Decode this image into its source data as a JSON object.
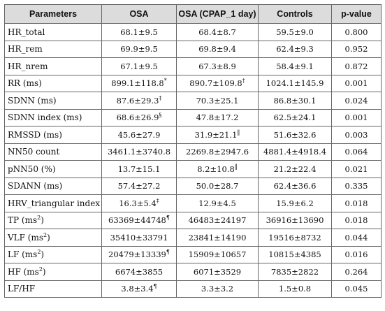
{
  "table": {
    "headers": [
      "Parameters",
      "OSA",
      "OSA (CPAP_1 day)",
      "Controls",
      "p-value"
    ],
    "rows": [
      {
        "param": "HR_total",
        "param_sup": "",
        "param_tail": "",
        "osa": "68.1±9.5",
        "osa_mark": "",
        "cpap": "68.4±8.7",
        "cpap_mark": "",
        "controls": "59.5±9.0",
        "p": "0.800"
      },
      {
        "param": "HR_rem",
        "param_sup": "",
        "param_tail": "",
        "osa": "69.9±9.5",
        "osa_mark": "",
        "cpap": "69.8±9.4",
        "cpap_mark": "",
        "controls": "62.4±9.3",
        "p": "0.952"
      },
      {
        "param": "HR_nrem",
        "param_sup": "",
        "param_tail": "",
        "osa": "67.1±9.5",
        "osa_mark": "",
        "cpap": "67.3±8.9",
        "cpap_mark": "",
        "controls": "58.4±9.1",
        "p": "0.872"
      },
      {
        "param": "RR (ms)",
        "param_sup": "",
        "param_tail": "",
        "osa": "899.1±118.8",
        "osa_mark": "*",
        "cpap": "890.7±109.8",
        "cpap_mark": "†",
        "controls": "1024.1±145.9",
        "p": "0.001"
      },
      {
        "param": "SDNN (ms)",
        "param_sup": "",
        "param_tail": "",
        "osa": "87.6±29.3",
        "osa_mark": "‡",
        "cpap": "70.3±25.1",
        "cpap_mark": "",
        "controls": "86.8±30.1",
        "p": "0.024"
      },
      {
        "param": "SDNN index (ms)",
        "param_sup": "",
        "param_tail": "",
        "osa": "68.6±26.9",
        "osa_mark": "§",
        "cpap": "47.8±17.2",
        "cpap_mark": "",
        "controls": "62.5±24.1",
        "p": "0.001"
      },
      {
        "param": "RMSSD (ms)",
        "param_sup": "",
        "param_tail": "",
        "osa": "45.6±27.9",
        "osa_mark": "",
        "cpap": "31.9±21.1",
        "cpap_mark": "‖",
        "controls": "51.6±32.6",
        "p": "0.003"
      },
      {
        "param": "NN50 count",
        "param_sup": "",
        "param_tail": "",
        "osa": "3461.1±3740.8",
        "osa_mark": "",
        "cpap": "2269.8±2947.6",
        "cpap_mark": "",
        "controls": "4881.4±4918.4",
        "p": "0.064"
      },
      {
        "param": "pNN50 (%)",
        "param_sup": "",
        "param_tail": "",
        "osa": "13.7±15.1",
        "osa_mark": "",
        "cpap": "8.2±10.8",
        "cpap_mark": "‖",
        "controls": "21.2±22.4",
        "p": "0.021"
      },
      {
        "param": "SDANN (ms)",
        "param_sup": "",
        "param_tail": "",
        "osa": "57.4±27.2",
        "osa_mark": "",
        "cpap": "50.0±28.7",
        "cpap_mark": "",
        "controls": "62.4±36.6",
        "p": "0.335"
      },
      {
        "param": "HRV_triangular index",
        "param_sup": "",
        "param_tail": "",
        "osa": "16.3±5.4",
        "osa_mark": "‡",
        "cpap": "12.9±4.5",
        "cpap_mark": "",
        "controls": "15.9±6.2",
        "p": "0.018"
      },
      {
        "param": "TP (ms",
        "param_sup": "2",
        "param_tail": ")",
        "osa": "63369±44748",
        "osa_mark": "¶",
        "cpap": "46483±24197",
        "cpap_mark": "",
        "controls": "36916±13690",
        "p": "0.018"
      },
      {
        "param": "VLF (ms",
        "param_sup": "2",
        "param_tail": ")",
        "osa": "35410±33791",
        "osa_mark": "",
        "cpap": "23841±14190",
        "cpap_mark": "",
        "controls": "19516±8732",
        "p": "0.044"
      },
      {
        "param": "LF (ms",
        "param_sup": "2",
        "param_tail": ")",
        "osa": "20479±13339",
        "osa_mark": "¶",
        "cpap": "15909±10657",
        "cpap_mark": "",
        "controls": "10815±4385",
        "p": "0.016"
      },
      {
        "param": "HF (ms",
        "param_sup": "2",
        "param_tail": ")",
        "osa": "6674±3855",
        "osa_mark": "",
        "cpap": "6071±3529",
        "cpap_mark": "",
        "controls": "7835±2822",
        "p": "0.264"
      },
      {
        "param": "LF/HF",
        "param_sup": "",
        "param_tail": "",
        "osa": "3.8±3.4",
        "osa_mark": "¶",
        "cpap": "3.3±3.2",
        "cpap_mark": "",
        "controls": "1.5±0.8",
        "p": "0.045"
      }
    ]
  }
}
